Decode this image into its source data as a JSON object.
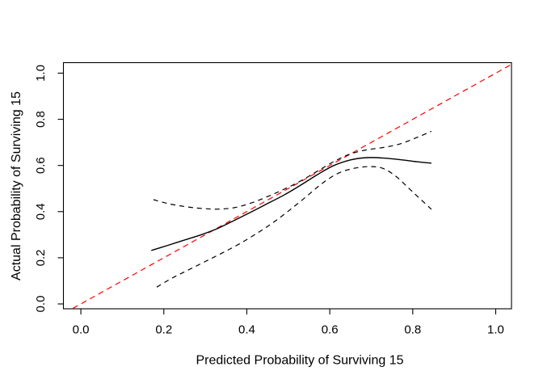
{
  "figure": {
    "background_color": "#ffffff",
    "foreground_color": "#000000",
    "ideal_line_color": "#ff0000"
  },
  "chart_data": {
    "type": "line",
    "title": "",
    "xlabel": "Predicted Probability of Surviving 15",
    "ylabel": "Actual Probability of Surviving 15",
    "xlim": [
      -0.042,
      1.038
    ],
    "ylim": [
      -0.021,
      1.0455
    ],
    "x_ticks": [
      0.0,
      0.2,
      0.4,
      0.6,
      0.8,
      1.0
    ],
    "y_ticks": [
      0.0,
      0.2,
      0.4,
      0.6,
      0.8,
      1.0
    ],
    "x_tick_labels": [
      "0.0",
      "0.2",
      "0.4",
      "0.6",
      "0.8",
      "1.0"
    ],
    "y_tick_labels": [
      "0.0",
      "0.2",
      "0.4",
      "0.6",
      "0.8",
      "1.0"
    ],
    "grid": false,
    "legend": null,
    "series": [
      {
        "name": "ideal-line",
        "style": "dashed",
        "color": "#ff0000",
        "points": [
          [
            -0.06,
            -0.06
          ],
          [
            1.06,
            1.06
          ]
        ]
      },
      {
        "name": "calibration-curve",
        "style": "solid",
        "color": "#000000",
        "points": [
          [
            0.17,
            0.232
          ],
          [
            0.21,
            0.254
          ],
          [
            0.25,
            0.277
          ],
          [
            0.29,
            0.3
          ],
          [
            0.33,
            0.327
          ],
          [
            0.37,
            0.362
          ],
          [
            0.41,
            0.398
          ],
          [
            0.45,
            0.435
          ],
          [
            0.49,
            0.472
          ],
          [
            0.53,
            0.515
          ],
          [
            0.57,
            0.56
          ],
          [
            0.61,
            0.6
          ],
          [
            0.65,
            0.624
          ],
          [
            0.69,
            0.634
          ],
          [
            0.73,
            0.632
          ],
          [
            0.77,
            0.625
          ],
          [
            0.81,
            0.616
          ],
          [
            0.845,
            0.61
          ]
        ]
      },
      {
        "name": "upper-confidence-band",
        "style": "dashed",
        "color": "#000000",
        "points": [
          [
            0.175,
            0.452
          ],
          [
            0.21,
            0.435
          ],
          [
            0.25,
            0.422
          ],
          [
            0.29,
            0.414
          ],
          [
            0.33,
            0.411
          ],
          [
            0.37,
            0.417
          ],
          [
            0.41,
            0.437
          ],
          [
            0.45,
            0.465
          ],
          [
            0.49,
            0.497
          ],
          [
            0.53,
            0.533
          ],
          [
            0.57,
            0.575
          ],
          [
            0.61,
            0.617
          ],
          [
            0.65,
            0.65
          ],
          [
            0.69,
            0.668
          ],
          [
            0.73,
            0.678
          ],
          [
            0.77,
            0.694
          ],
          [
            0.81,
            0.721
          ],
          [
            0.845,
            0.748
          ]
        ]
      },
      {
        "name": "lower-confidence-band",
        "style": "dashed",
        "color": "#000000",
        "points": [
          [
            0.183,
            0.073
          ],
          [
            0.22,
            0.112
          ],
          [
            0.26,
            0.148
          ],
          [
            0.3,
            0.184
          ],
          [
            0.34,
            0.22
          ],
          [
            0.38,
            0.258
          ],
          [
            0.42,
            0.301
          ],
          [
            0.46,
            0.348
          ],
          [
            0.5,
            0.402
          ],
          [
            0.54,
            0.46
          ],
          [
            0.58,
            0.52
          ],
          [
            0.62,
            0.566
          ],
          [
            0.66,
            0.588
          ],
          [
            0.7,
            0.595
          ],
          [
            0.73,
            0.586
          ],
          [
            0.76,
            0.552
          ],
          [
            0.79,
            0.502
          ],
          [
            0.815,
            0.46
          ],
          [
            0.845,
            0.41
          ]
        ]
      }
    ]
  }
}
